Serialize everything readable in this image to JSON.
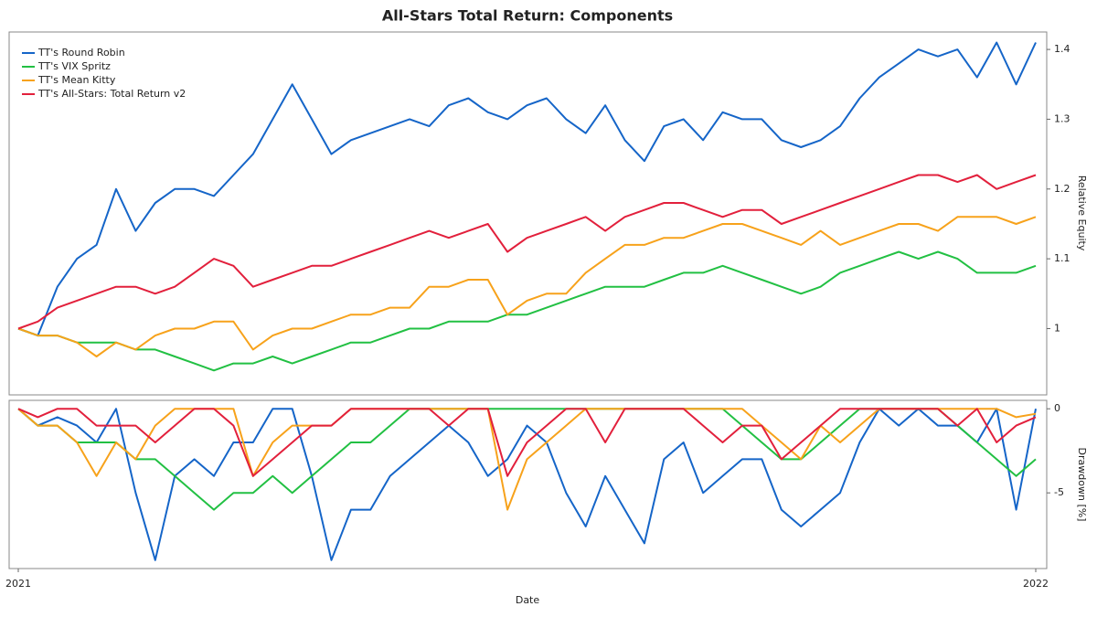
{
  "chart_data": [
    {
      "type": "line",
      "title": "All-Stars Total Return: Components",
      "y_label": "Relative Equity",
      "ylim": [
        0.905,
        1.425
      ],
      "yticks": [
        1,
        1.1,
        1.2,
        1.3,
        1.4
      ],
      "legend": "upper-left",
      "series": [
        {
          "name": "TT's Round Robin",
          "color": "#1565c8",
          "values": [
            1.0,
            0.99,
            1.06,
            1.1,
            1.12,
            1.2,
            1.14,
            1.18,
            1.2,
            1.2,
            1.19,
            1.22,
            1.25,
            1.3,
            1.35,
            1.3,
            1.25,
            1.27,
            1.28,
            1.29,
            1.3,
            1.29,
            1.32,
            1.33,
            1.31,
            1.3,
            1.32,
            1.33,
            1.3,
            1.28,
            1.32,
            1.27,
            1.24,
            1.29,
            1.3,
            1.27,
            1.31,
            1.3,
            1.3,
            1.27,
            1.26,
            1.27,
            1.29,
            1.33,
            1.36,
            1.38,
            1.4,
            1.39,
            1.4,
            1.36,
            1.41,
            1.35,
            1.41
          ]
        },
        {
          "name": "TT's VIX Spritz",
          "color": "#22c043",
          "values": [
            1.0,
            0.99,
            0.99,
            0.98,
            0.98,
            0.98,
            0.97,
            0.97,
            0.96,
            0.95,
            0.94,
            0.95,
            0.95,
            0.96,
            0.95,
            0.96,
            0.97,
            0.98,
            0.98,
            0.99,
            1.0,
            1.0,
            1.01,
            1.01,
            1.01,
            1.02,
            1.02,
            1.03,
            1.04,
            1.05,
            1.06,
            1.06,
            1.06,
            1.07,
            1.08,
            1.08,
            1.09,
            1.08,
            1.07,
            1.06,
            1.05,
            1.06,
            1.08,
            1.09,
            1.1,
            1.11,
            1.1,
            1.11,
            1.1,
            1.08,
            1.08,
            1.08,
            1.09
          ]
        },
        {
          "name": "TT's Mean Kitty",
          "color": "#f7a21b",
          "values": [
            1.0,
            0.99,
            0.99,
            0.98,
            0.96,
            0.98,
            0.97,
            0.99,
            1.0,
            1.0,
            1.01,
            1.01,
            0.97,
            0.99,
            1.0,
            1.0,
            1.01,
            1.02,
            1.02,
            1.03,
            1.03,
            1.06,
            1.06,
            1.07,
            1.07,
            1.02,
            1.04,
            1.05,
            1.05,
            1.08,
            1.1,
            1.12,
            1.12,
            1.13,
            1.13,
            1.14,
            1.15,
            1.15,
            1.14,
            1.13,
            1.12,
            1.14,
            1.12,
            1.13,
            1.14,
            1.15,
            1.15,
            1.14,
            1.16,
            1.16,
            1.16,
            1.15,
            1.16
          ]
        },
        {
          "name": "TT's All-Stars: Total Return v2",
          "color": "#e2203c",
          "values": [
            1.0,
            1.01,
            1.03,
            1.04,
            1.05,
            1.06,
            1.06,
            1.05,
            1.06,
            1.08,
            1.1,
            1.09,
            1.06,
            1.07,
            1.08,
            1.09,
            1.09,
            1.1,
            1.11,
            1.12,
            1.13,
            1.14,
            1.13,
            1.14,
            1.15,
            1.11,
            1.13,
            1.14,
            1.15,
            1.16,
            1.14,
            1.16,
            1.17,
            1.18,
            1.18,
            1.17,
            1.16,
            1.17,
            1.17,
            1.15,
            1.16,
            1.17,
            1.18,
            1.19,
            1.2,
            1.21,
            1.22,
            1.22,
            1.21,
            1.22,
            1.2,
            1.21,
            1.22
          ]
        }
      ]
    },
    {
      "type": "line",
      "x_label": "Date",
      "y_label": "Drawdown [%]",
      "categories": [
        "2021",
        null,
        null,
        null,
        null,
        null,
        null,
        null,
        null,
        null,
        null,
        null,
        null,
        null,
        null,
        null,
        null,
        null,
        null,
        null,
        null,
        null,
        null,
        null,
        null,
        null,
        null,
        null,
        null,
        null,
        null,
        null,
        null,
        null,
        null,
        null,
        null,
        null,
        null,
        null,
        null,
        null,
        null,
        null,
        null,
        null,
        null,
        null,
        null,
        null,
        null,
        null,
        "2022"
      ],
      "ylim": [
        -9.5,
        0.5
      ],
      "yticks": [
        -5,
        0
      ],
      "series": [
        {
          "color": "#1565c8",
          "values": [
            0,
            -1,
            -0.5,
            -1,
            -2,
            0,
            -5,
            -9,
            -4,
            -3,
            -4,
            -2,
            -2,
            0,
            0,
            -4,
            -9,
            -6,
            -6,
            -4,
            -3,
            -2,
            -1,
            -2,
            -4,
            -3,
            -1,
            -2,
            -5,
            -7,
            -4,
            -6,
            -8,
            -3,
            -2,
            -5,
            -4,
            -3,
            -3,
            -6,
            -7,
            -6,
            -5,
            -2,
            0,
            -1,
            0,
            -1,
            -1,
            -2,
            0,
            -6,
            0
          ]
        },
        {
          "color": "#22c043",
          "values": [
            0,
            -1,
            -1,
            -2,
            -2,
            -2,
            -3,
            -3,
            -4,
            -5,
            -6,
            -5,
            -5,
            -4,
            -5,
            -4,
            -3,
            -2,
            -2,
            -1,
            0,
            0,
            0,
            0,
            0,
            0,
            0,
            0,
            0,
            0,
            0,
            0,
            0,
            0,
            0,
            0,
            0,
            -1,
            -2,
            -3,
            -3,
            -2,
            -1,
            0,
            0,
            0,
            0,
            0,
            -1,
            -2,
            -3,
            -4,
            -3
          ]
        },
        {
          "color": "#f7a21b",
          "values": [
            0,
            -1,
            -1,
            -2,
            -4,
            -2,
            -3,
            -1,
            0,
            0,
            0,
            0,
            -4,
            -2,
            -1,
            -1,
            -1,
            0,
            0,
            0,
            0,
            0,
            0,
            0,
            0,
            -6,
            -3,
            -2,
            -1,
            0,
            0,
            0,
            0,
            0,
            0,
            0,
            0,
            0,
            -1,
            -2,
            -3,
            -1,
            -2,
            -1,
            0,
            0,
            0,
            0,
            0,
            0,
            0,
            -0.5,
            -0.3
          ]
        },
        {
          "color": "#e2203c",
          "values": [
            0,
            -0.5,
            0,
            0,
            -1,
            -1,
            -1,
            -2,
            -1,
            0,
            0,
            -1,
            -4,
            -3,
            -2,
            -1,
            -1,
            0,
            0,
            0,
            0,
            0,
            -1,
            0,
            0,
            -4,
            -2,
            -1,
            0,
            0,
            -2,
            0,
            0,
            0,
            0,
            -1,
            -2,
            -1,
            -1,
            -3,
            -2,
            -1,
            0,
            0,
            0,
            0,
            0,
            0,
            -1,
            0,
            -2,
            -1,
            -0.5
          ]
        }
      ]
    }
  ]
}
